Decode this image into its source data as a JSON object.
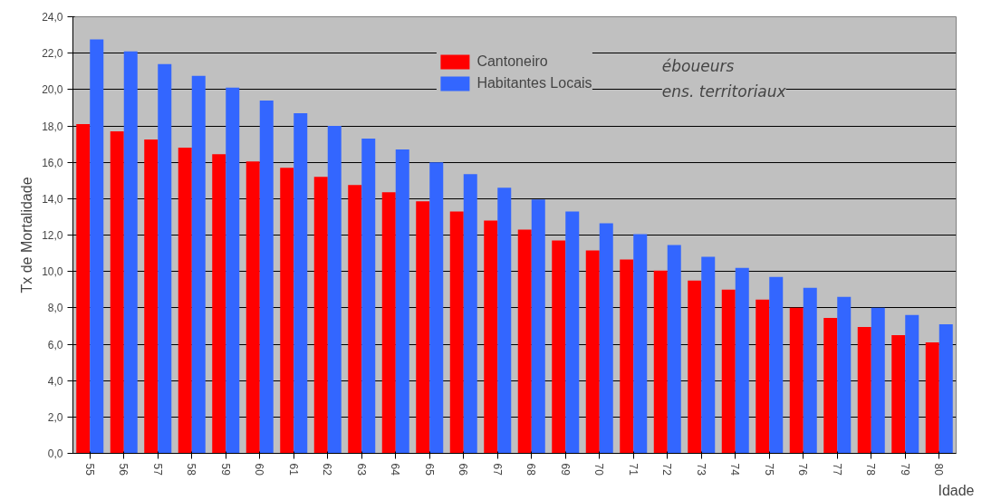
{
  "chart_data": {
    "type": "bar",
    "xlabel": "Idade",
    "ylabel": "Tx de Mortalidade",
    "categories": [
      "55",
      "56",
      "57",
      "58",
      "59",
      "60",
      "61",
      "62",
      "63",
      "64",
      "65",
      "66",
      "67",
      "68",
      "69",
      "70",
      "71",
      "72",
      "73",
      "74",
      "75",
      "76",
      "77",
      "78",
      "79",
      "80"
    ],
    "series": [
      {
        "name": "Cantoneiro",
        "color": "#ff0000",
        "values": [
          18.1,
          17.7,
          17.25,
          16.8,
          16.45,
          16.05,
          15.7,
          15.2,
          14.75,
          14.35,
          13.85,
          13.3,
          12.8,
          12.3,
          11.7,
          11.15,
          10.65,
          10.05,
          9.5,
          9.0,
          8.45,
          8.0,
          7.45,
          6.95,
          6.5,
          6.1
        ]
      },
      {
        "name": "Habitantes Locais",
        "color": "#3366ff",
        "values": [
          22.75,
          22.1,
          21.4,
          20.75,
          20.1,
          19.4,
          18.7,
          18.0,
          17.3,
          16.7,
          16.0,
          15.35,
          14.6,
          13.95,
          13.3,
          12.65,
          12.05,
          11.45,
          10.8,
          10.2,
          9.7,
          9.1,
          8.6,
          8.0,
          7.6,
          7.1
        ]
      }
    ],
    "ylim": [
      0,
      24
    ],
    "yticks": [
      {
        "value": 0,
        "label": "0,0"
      },
      {
        "value": 2,
        "label": "2,0"
      },
      {
        "value": 4,
        "label": "4,0"
      },
      {
        "value": 6,
        "label": "6,0"
      },
      {
        "value": 8,
        "label": "8,0"
      },
      {
        "value": 10,
        "label": "10,0"
      },
      {
        "value": 12,
        "label": "12,0"
      },
      {
        "value": 14,
        "label": "14,0"
      },
      {
        "value": 16,
        "label": "16,0"
      },
      {
        "value": 18,
        "label": "18,0"
      },
      {
        "value": 20,
        "label": "20,0"
      },
      {
        "value": 22,
        "label": "22,0"
      },
      {
        "value": 24,
        "label": "24,0"
      }
    ],
    "grid": "y",
    "legend": "top",
    "annotations": [
      "éboueurs",
      "ens. territoriaux"
    ]
  }
}
